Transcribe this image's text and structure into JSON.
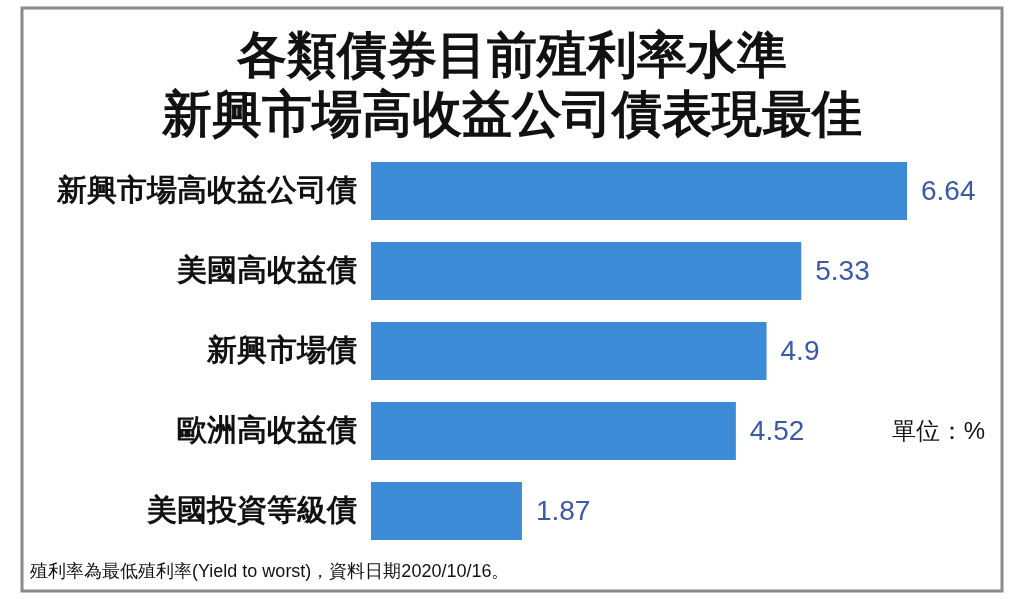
{
  "chart_data": {
    "type": "bar",
    "orientation": "horizontal",
    "title": "各類債券目前殖利率水準",
    "subtitle": "新興市場高收益公司債表現最佳",
    "categories": [
      "新興市場高收益公司債",
      "美國高收益債",
      "新興市場債",
      "歐洲高收益債",
      "美國投資等級債"
    ],
    "values": [
      6.64,
      5.33,
      4.9,
      4.52,
      1.87
    ],
    "color": "#3d8bd6",
    "data_labels": true,
    "annotations": [
      "單位：%",
      "殖利率為最低殖利率(Yield to worst)，資料日期2020/10/16。"
    ]
  }
}
